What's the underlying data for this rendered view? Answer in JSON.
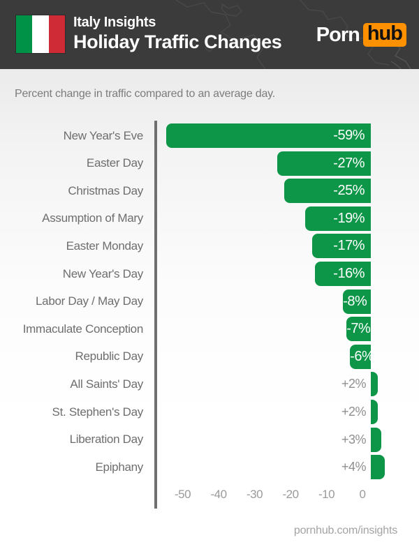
{
  "header": {
    "title_line1": "Italy Insights",
    "title_line2": "Holiday Traffic Changes",
    "logo": {
      "part1": "Porn",
      "part2": "hub",
      "accent_color": "#ff9000"
    },
    "flag": {
      "name": "italy-flag",
      "stripe_colors": [
        "#009246",
        "#ffffff",
        "#ce2b37"
      ]
    },
    "background_color": "#3b3b3b"
  },
  "subtitle": "Percent change in traffic compared to an average day.",
  "chart_data": {
    "type": "bar",
    "orientation": "horizontal",
    "title": "Holiday Traffic Changes",
    "description": "Percent change in traffic compared to an average day.",
    "categories": [
      "New Year's Eve",
      "Easter Day",
      "Christmas Day",
      "Assumption of Mary",
      "Easter Monday",
      "New Year's Day",
      "Labor Day / May Day",
      "Immaculate Conception",
      "Republic Day",
      "All Saints' Day",
      "St. Stephen's Day",
      "Liberation Day",
      "Epiphany"
    ],
    "values": [
      -59,
      -27,
      -25,
      -19,
      -17,
      -16,
      -8,
      -7,
      -6,
      2,
      2,
      3,
      4
    ],
    "value_labels": [
      "-59%",
      "-27%",
      "-25%",
      "-19%",
      "-17%",
      "-16%",
      "-8%",
      "-7%",
      "-6%",
      "+2%",
      "+2%",
      "+3%",
      "+4%"
    ],
    "unit": "%",
    "x_ticks": [
      -50,
      -40,
      -30,
      -20,
      -10,
      0
    ],
    "xlim": [
      -62,
      8
    ],
    "bar_color": "#0d9648",
    "grid": false,
    "legend": false
  },
  "footer": {
    "link_text": "pornhub.com/insights"
  },
  "colors": {
    "header_background": "#3b3b3b",
    "bar_green": "#0d9648",
    "axis_line": "#6f6f6f",
    "category_label": "#6e6e6e",
    "tick_label": "#9a9a9a",
    "positive_value_label": "#8f8f8f",
    "bar_value_label": "#ffffff"
  }
}
